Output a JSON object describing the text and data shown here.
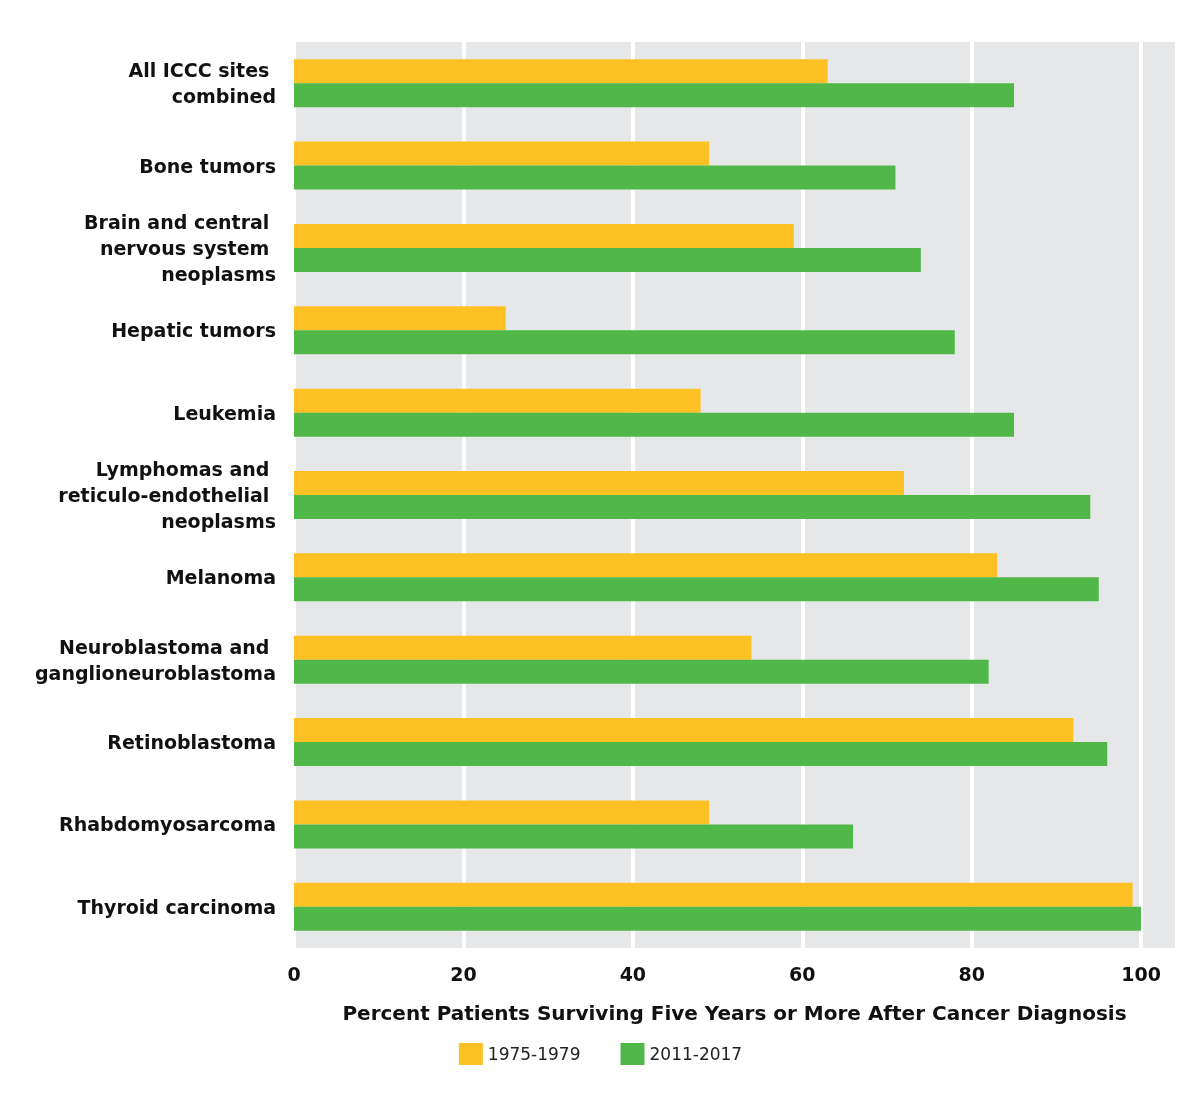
{
  "chart_data": {
    "type": "bar",
    "orientation": "horizontal",
    "xlabel": "Percent Patients Surviving Five Years or More After Cancer Diagnosis",
    "categories": [
      "All ICCC sites combined",
      "Bone tumors",
      "Brain and central nervous system neoplasms",
      "Hepatic tumors",
      "Leukemia",
      "Lymphomas and reticulo-endothelial neoplasms",
      "Melanoma",
      "Neuroblastoma and ganglioneuroblastoma",
      "Retinoblastoma",
      "Rhabdomyosarcoma",
      "Thyroid carcinoma"
    ],
    "series": [
      {
        "name": "1975-1979",
        "color": "#fdc124",
        "values": [
          63,
          49,
          59,
          25,
          48,
          72,
          83,
          54,
          92,
          49,
          99
        ]
      },
      {
        "name": "2011-2017",
        "color": "#4fb848",
        "values": [
          85,
          71,
          74,
          78,
          85,
          94,
          95,
          82,
          96,
          66,
          100
        ]
      }
    ],
    "xlim": [
      0,
      104
    ],
    "xticks": [
      0,
      20,
      40,
      60,
      80,
      100
    ],
    "grid": "x",
    "legend": "bottom"
  }
}
